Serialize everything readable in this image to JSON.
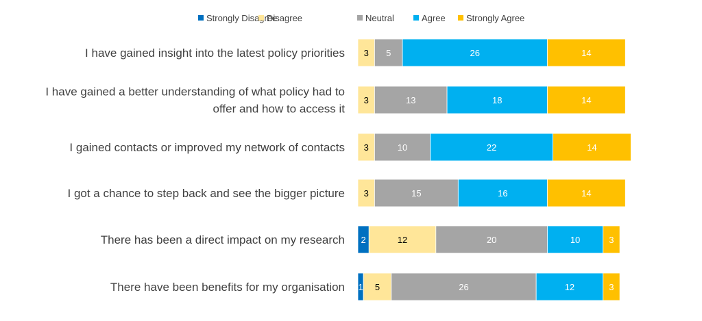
{
  "chart_data": {
    "type": "bar",
    "orientation": "horizontal",
    "stacked": true,
    "title": "",
    "xlabel": "",
    "ylabel": "",
    "legend_position": "top",
    "grid": false,
    "categories": [
      "I have gained insight into the latest policy priorities",
      "I have gained a better understanding of what policy had to offer and how to access it",
      "I gained contacts or improved my network of contacts",
      "I got a chance to step back and see the bigger picture",
      "There has been a direct impact on my research",
      "There have been benefits for my organisation"
    ],
    "category_lines": [
      [
        "I have gained insight into the latest policy priorities"
      ],
      [
        "I have gained a better understanding of what policy had to",
        "offer and how to access it"
      ],
      [
        "I gained contacts or improved my network of contacts"
      ],
      [
        "I got a chance to step back and see the bigger picture"
      ],
      [
        "There has been a direct impact on my research"
      ],
      [
        "There have been benefits for my organisation"
      ]
    ],
    "series": [
      {
        "name": "Strongly Disagree",
        "color": "#0070C0",
        "label_color": "#ffffff",
        "values": [
          0,
          0,
          0,
          0,
          2,
          1
        ]
      },
      {
        "name": "Disagree",
        "color": "#FFE699",
        "label_color": "#000000",
        "values": [
          3,
          3,
          3,
          3,
          12,
          5
        ]
      },
      {
        "name": "Neutral",
        "color": "#A5A5A5",
        "label_color": "#ffffff",
        "values": [
          5,
          13,
          10,
          15,
          20,
          26
        ]
      },
      {
        "name": "Agree",
        "color": "#00B0F0",
        "label_color": "#ffffff",
        "values": [
          26,
          18,
          22,
          16,
          10,
          12
        ]
      },
      {
        "name": "Strongly Agree",
        "color": "#FFC000",
        "label_color": "#ffffff",
        "values": [
          14,
          14,
          14,
          14,
          3,
          3
        ]
      }
    ]
  }
}
